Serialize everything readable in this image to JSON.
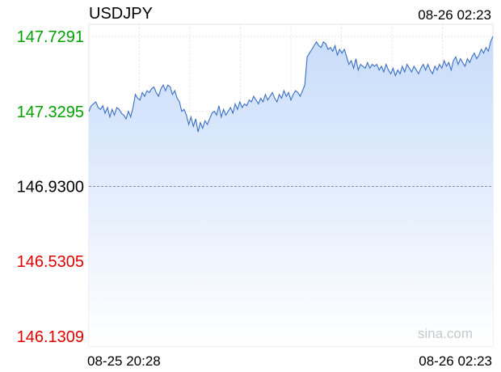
{
  "chart_data": {
    "type": "area",
    "title": "USDJPY",
    "timestamp": "08-26 02:23",
    "watermark": "sina.com",
    "x_labels": {
      "start": "08-25 20:28",
      "end": "08-26 02:23"
    },
    "y_ticks": [
      {
        "label": "147.7291",
        "value": 147.7291,
        "status": "up"
      },
      {
        "label": "147.3295",
        "value": 147.3295,
        "status": "up"
      },
      {
        "label": "146.9300",
        "value": 146.93,
        "status": "base"
      },
      {
        "label": "146.5305",
        "value": 146.5305,
        "status": "down"
      },
      {
        "label": "146.1309",
        "value": 146.1309,
        "status": "down"
      }
    ],
    "ylim": [
      146.1309,
      147.7291
    ],
    "baseline": 146.93,
    "grid": true,
    "colors": {
      "up": "#00a000",
      "down": "#e00000",
      "base": "#000000",
      "line": "#3a6fc4",
      "fill_top": "#c8dcfa",
      "fill_bottom": "#ffffff"
    },
    "series": [
      {
        "values": [
          147.33,
          147.36,
          147.37,
          147.38,
          147.35,
          147.34,
          147.36,
          147.32,
          147.35,
          147.3,
          147.34,
          147.31,
          147.35,
          147.34,
          147.32,
          147.31,
          147.29,
          147.33,
          147.3,
          147.35,
          147.42,
          147.4,
          147.39,
          147.43,
          147.41,
          147.44,
          147.43,
          147.45,
          147.46,
          147.43,
          147.41,
          147.45,
          147.47,
          147.44,
          147.47,
          147.46,
          147.42,
          147.44,
          147.4,
          147.38,
          147.33,
          147.34,
          147.31,
          147.26,
          147.3,
          147.25,
          147.29,
          147.22,
          147.27,
          147.24,
          147.28,
          147.26,
          147.29,
          147.32,
          147.33,
          147.31,
          147.36,
          147.3,
          147.34,
          147.31,
          147.33,
          147.35,
          147.32,
          147.37,
          147.34,
          147.38,
          147.35,
          147.37,
          147.36,
          147.39,
          147.38,
          147.41,
          147.39,
          147.37,
          147.4,
          147.38,
          147.42,
          147.39,
          147.41,
          147.43,
          147.4,
          147.38,
          147.42,
          147.4,
          147.44,
          147.41,
          147.43,
          147.39,
          147.42,
          147.44,
          147.43,
          147.41,
          147.44,
          147.47,
          147.62,
          147.64,
          147.66,
          147.68,
          147.7,
          147.68,
          147.67,
          147.7,
          147.69,
          147.66,
          147.67,
          147.65,
          147.68,
          147.63,
          147.66,
          147.64,
          147.66,
          147.62,
          147.58,
          147.6,
          147.56,
          147.61,
          147.55,
          147.58,
          147.57,
          147.56,
          147.59,
          147.56,
          147.58,
          147.57,
          147.58,
          147.55,
          147.57,
          147.54,
          147.58,
          147.55,
          147.53,
          147.56,
          147.52,
          147.55,
          147.53,
          147.57,
          147.54,
          147.58,
          147.56,
          147.54,
          147.57,
          147.55,
          147.53,
          147.56,
          147.58,
          147.55,
          147.58,
          147.55,
          147.53,
          147.57,
          147.55,
          147.58,
          147.56,
          147.6,
          147.57,
          147.59,
          147.55,
          147.6,
          147.62,
          147.58,
          147.61,
          147.59,
          147.57,
          147.61,
          147.59,
          147.62,
          147.64,
          147.61,
          147.63,
          147.66,
          147.64,
          147.67,
          147.65,
          147.7,
          147.73
        ]
      }
    ]
  }
}
